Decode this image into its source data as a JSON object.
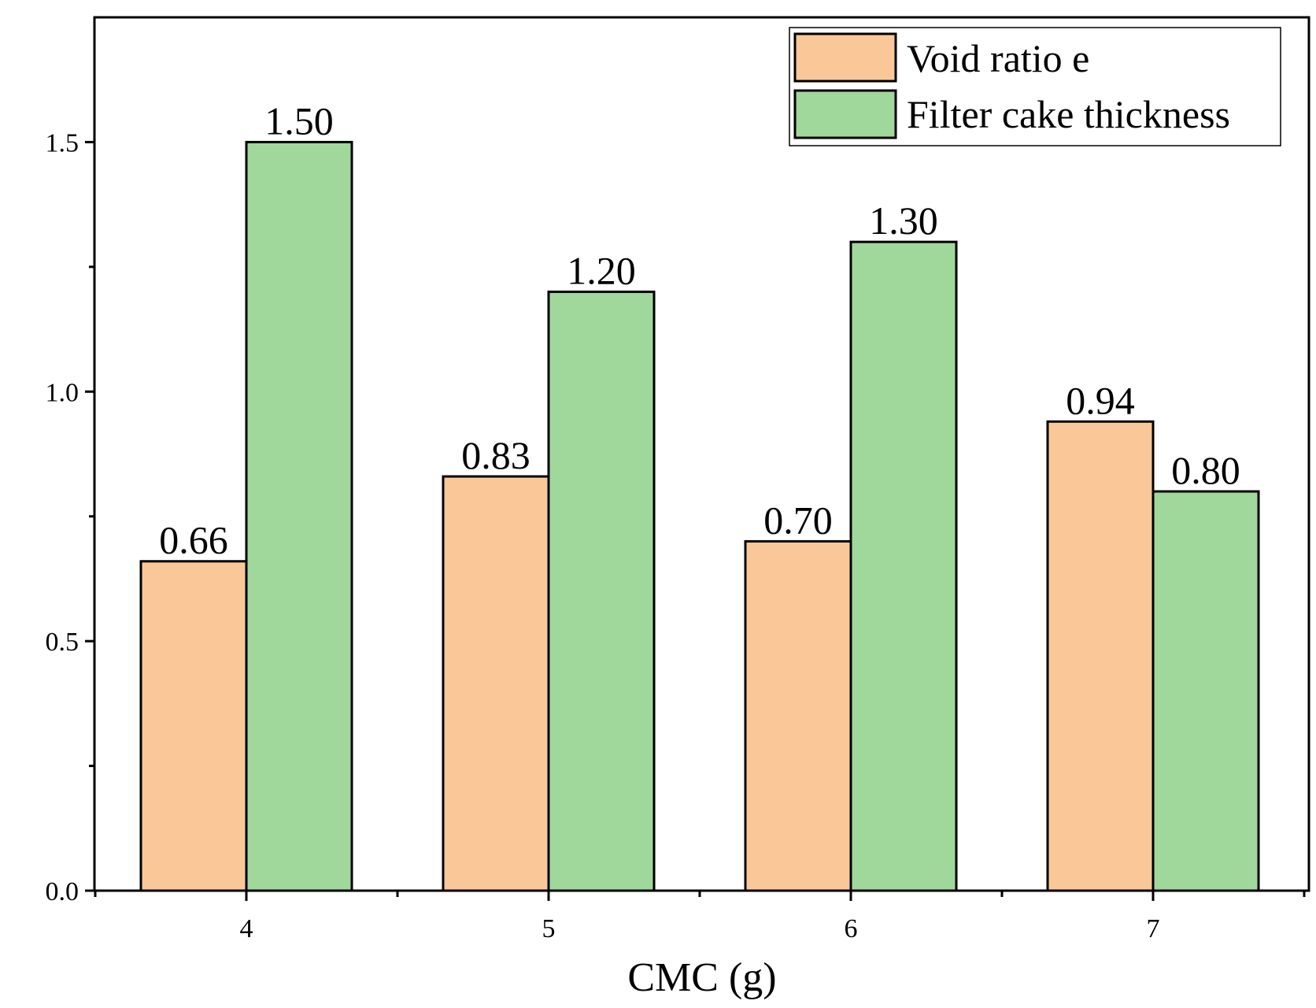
{
  "chart_data": {
    "type": "bar",
    "title": "",
    "xlabel": "CMC (g)",
    "ylabel": "",
    "categories": [
      "4",
      "5",
      "6",
      "7"
    ],
    "ylim": [
      0,
      1.75
    ],
    "yticks": [
      0.0,
      0.5,
      1.0,
      1.5
    ],
    "ytick_labels": [
      "0.0",
      "0.5",
      "1.0",
      "1.5"
    ],
    "series": [
      {
        "name": "Void ratio e",
        "color": "#FAC898",
        "values": [
          0.66,
          0.83,
          0.7,
          0.94
        ],
        "labels": [
          "0.66",
          "0.83",
          "0.70",
          "0.94"
        ]
      },
      {
        "name": "Filter cake thickness",
        "color": "#A0D89C",
        "values": [
          1.5,
          1.2,
          1.3,
          0.8
        ],
        "labels": [
          "1.50",
          "1.20",
          "1.30",
          "0.80"
        ]
      }
    ],
    "legend_position": "top-right",
    "grid": false
  }
}
